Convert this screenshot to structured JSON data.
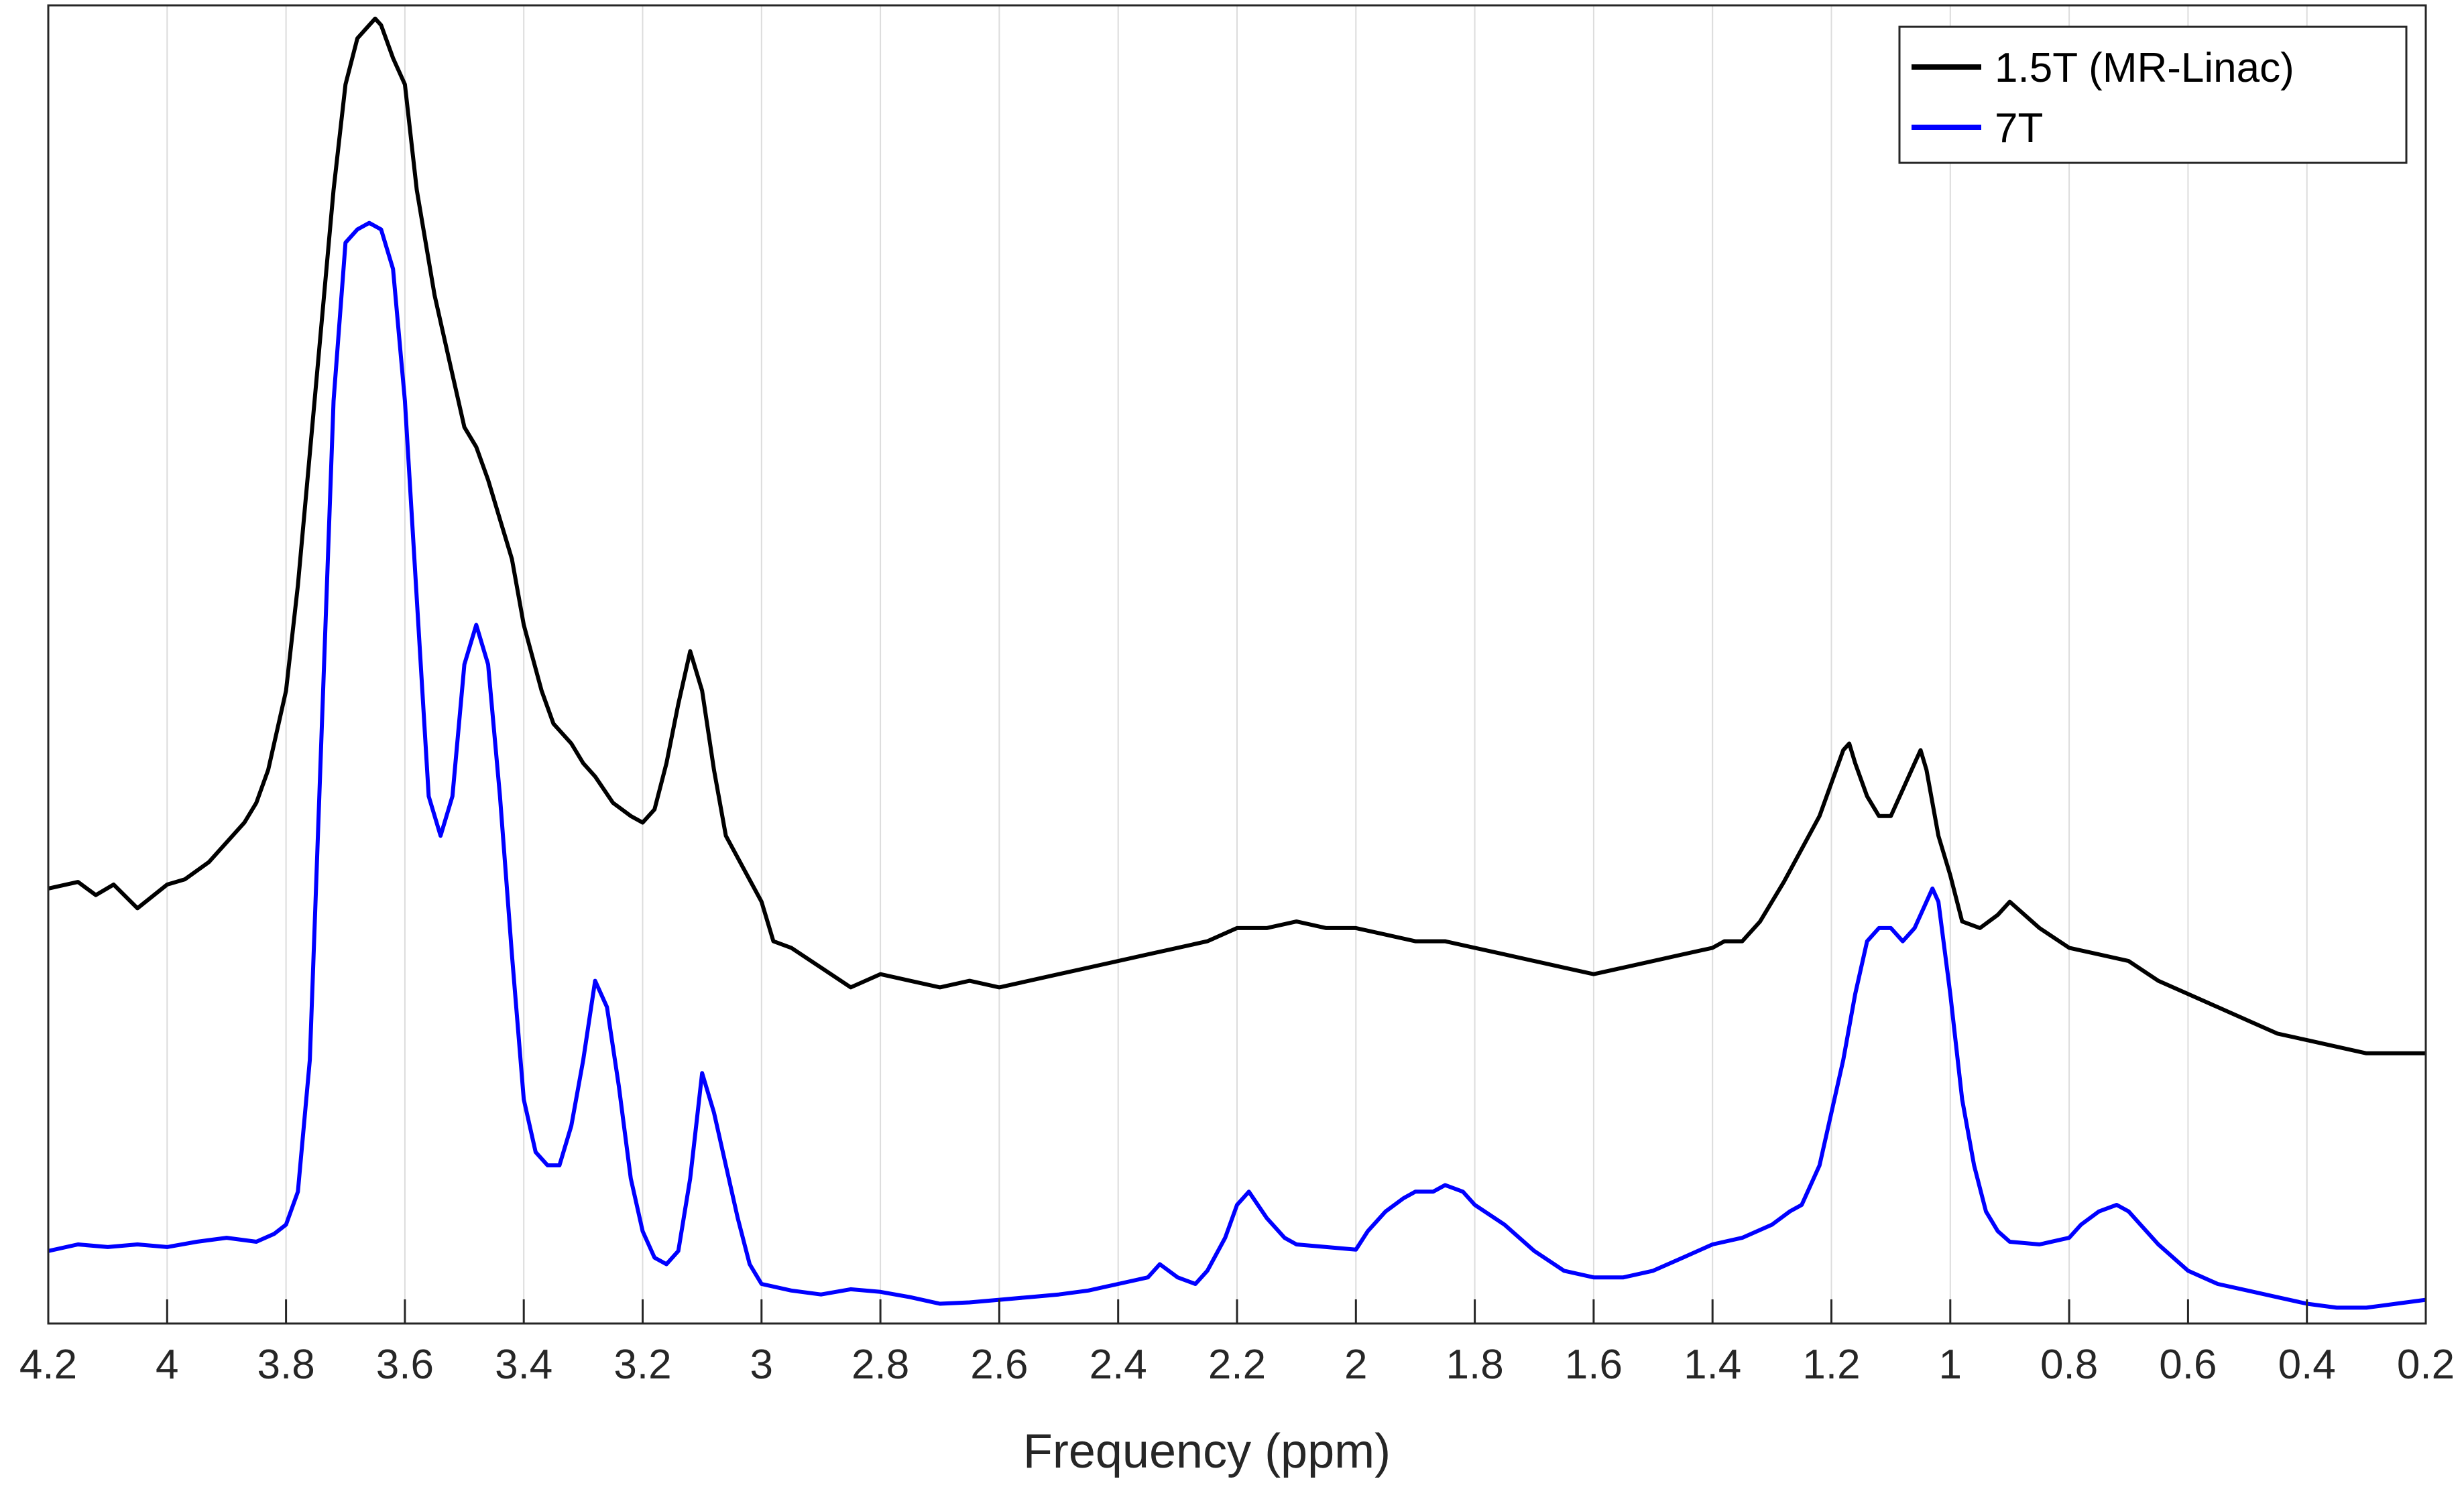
{
  "chart_data": {
    "type": "line",
    "title": "",
    "xlabel": "Frequency (ppm)",
    "ylabel": "",
    "x_reversed": true,
    "xlim": [
      0.2,
      4.2
    ],
    "ylim": [
      0,
      1
    ],
    "y_ticks_shown": false,
    "grid": "vertical",
    "legend_position": "top-right",
    "x_ticks": [
      4.2,
      4,
      3.8,
      3.6,
      3.4,
      3.2,
      3,
      2.8,
      2.6,
      2.4,
      2.2,
      2,
      1.8,
      1.6,
      1.4,
      1.2,
      1,
      0.8,
      0.6,
      0.4,
      0.2
    ],
    "x_tick_labels": [
      "4.2",
      "4",
      "3.8",
      "3.6",
      "3.4",
      "3.2",
      "3",
      "2.8",
      "2.6",
      "2.4",
      "2.2",
      "2",
      "1.8",
      "1.6",
      "1.4",
      "1.2",
      "1",
      "0.8",
      "0.6",
      "0.4",
      "0.2"
    ],
    "series": [
      {
        "name": "1.5T (MR-Linac)",
        "color": "#000000",
        "x": [
          4.2,
          4.15,
          4.12,
          4.09,
          4.05,
          4.0,
          3.97,
          3.93,
          3.9,
          3.87,
          3.85,
          3.83,
          3.8,
          3.78,
          3.76,
          3.74,
          3.72,
          3.7,
          3.68,
          3.66,
          3.65,
          3.64,
          3.62,
          3.6,
          3.58,
          3.55,
          3.52,
          3.5,
          3.48,
          3.46,
          3.44,
          3.42,
          3.4,
          3.37,
          3.35,
          3.32,
          3.3,
          3.28,
          3.25,
          3.22,
          3.2,
          3.18,
          3.16,
          3.14,
          3.12,
          3.1,
          3.08,
          3.06,
          3.03,
          3.0,
          2.98,
          2.95,
          2.9,
          2.85,
          2.8,
          2.75,
          2.7,
          2.65,
          2.6,
          2.55,
          2.5,
          2.45,
          2.4,
          2.35,
          2.3,
          2.25,
          2.2,
          2.15,
          2.1,
          2.05,
          2.0,
          1.95,
          1.9,
          1.85,
          1.8,
          1.75,
          1.7,
          1.65,
          1.6,
          1.55,
          1.5,
          1.45,
          1.4,
          1.38,
          1.35,
          1.32,
          1.28,
          1.25,
          1.22,
          1.2,
          1.18,
          1.17,
          1.16,
          1.14,
          1.12,
          1.1,
          1.08,
          1.06,
          1.05,
          1.04,
          1.02,
          1.0,
          0.98,
          0.95,
          0.92,
          0.9,
          0.85,
          0.8,
          0.75,
          0.7,
          0.65,
          0.6,
          0.55,
          0.5,
          0.45,
          0.4,
          0.35,
          0.3,
          0.25,
          0.2
        ],
        "y": [
          0.33,
          0.335,
          0.325,
          0.333,
          0.315,
          0.333,
          0.337,
          0.35,
          0.365,
          0.38,
          0.395,
          0.42,
          0.48,
          0.56,
          0.66,
          0.76,
          0.86,
          0.94,
          0.975,
          0.985,
          0.99,
          0.985,
          0.96,
          0.94,
          0.86,
          0.78,
          0.72,
          0.68,
          0.665,
          0.64,
          0.61,
          0.58,
          0.53,
          0.48,
          0.455,
          0.44,
          0.425,
          0.415,
          0.395,
          0.385,
          0.38,
          0.39,
          0.425,
          0.47,
          0.51,
          0.48,
          0.42,
          0.37,
          0.345,
          0.32,
          0.29,
          0.285,
          0.27,
          0.255,
          0.265,
          0.26,
          0.255,
          0.26,
          0.255,
          0.26,
          0.265,
          0.27,
          0.275,
          0.28,
          0.285,
          0.29,
          0.3,
          0.3,
          0.305,
          0.3,
          0.3,
          0.295,
          0.29,
          0.29,
          0.285,
          0.28,
          0.275,
          0.27,
          0.265,
          0.27,
          0.275,
          0.28,
          0.285,
          0.29,
          0.29,
          0.305,
          0.335,
          0.36,
          0.385,
          0.41,
          0.435,
          0.44,
          0.425,
          0.4,
          0.385,
          0.385,
          0.405,
          0.425,
          0.435,
          0.42,
          0.37,
          0.34,
          0.305,
          0.3,
          0.31,
          0.32,
          0.3,
          0.285,
          0.28,
          0.275,
          0.26,
          0.25,
          0.24,
          0.23,
          0.22,
          0.215,
          0.21,
          0.205,
          0.205,
          0.205
        ]
      },
      {
        "name": "7T",
        "color": "#0000ff",
        "x": [
          4.2,
          4.15,
          4.1,
          4.05,
          4.0,
          3.95,
          3.9,
          3.85,
          3.82,
          3.8,
          3.78,
          3.76,
          3.74,
          3.72,
          3.7,
          3.68,
          3.66,
          3.64,
          3.62,
          3.6,
          3.58,
          3.56,
          3.54,
          3.52,
          3.5,
          3.48,
          3.46,
          3.44,
          3.42,
          3.4,
          3.38,
          3.36,
          3.34,
          3.32,
          3.3,
          3.28,
          3.26,
          3.24,
          3.22,
          3.2,
          3.18,
          3.16,
          3.14,
          3.12,
          3.1,
          3.08,
          3.06,
          3.04,
          3.02,
          3.0,
          2.95,
          2.9,
          2.85,
          2.8,
          2.75,
          2.7,
          2.65,
          2.6,
          2.55,
          2.5,
          2.45,
          2.4,
          2.35,
          2.33,
          2.3,
          2.27,
          2.25,
          2.22,
          2.2,
          2.18,
          2.15,
          2.12,
          2.1,
          2.05,
          2.0,
          1.98,
          1.95,
          1.92,
          1.9,
          1.87,
          1.85,
          1.82,
          1.8,
          1.75,
          1.7,
          1.65,
          1.6,
          1.55,
          1.5,
          1.45,
          1.4,
          1.35,
          1.3,
          1.27,
          1.25,
          1.22,
          1.2,
          1.18,
          1.16,
          1.14,
          1.12,
          1.1,
          1.08,
          1.06,
          1.04,
          1.03,
          1.02,
          1.0,
          0.98,
          0.96,
          0.94,
          0.92,
          0.9,
          0.85,
          0.8,
          0.78,
          0.75,
          0.72,
          0.7,
          0.68,
          0.65,
          0.6,
          0.55,
          0.5,
          0.45,
          0.4,
          0.35,
          0.3,
          0.25,
          0.2
        ],
        "y": [
          0.055,
          0.06,
          0.058,
          0.06,
          0.058,
          0.062,
          0.065,
          0.062,
          0.068,
          0.075,
          0.1,
          0.2,
          0.45,
          0.7,
          0.82,
          0.83,
          0.835,
          0.83,
          0.8,
          0.7,
          0.55,
          0.4,
          0.37,
          0.4,
          0.5,
          0.53,
          0.5,
          0.4,
          0.28,
          0.17,
          0.13,
          0.12,
          0.12,
          0.15,
          0.2,
          0.26,
          0.24,
          0.18,
          0.11,
          0.07,
          0.05,
          0.045,
          0.055,
          0.11,
          0.19,
          0.16,
          0.12,
          0.08,
          0.045,
          0.03,
          0.025,
          0.022,
          0.026,
          0.024,
          0.02,
          0.015,
          0.016,
          0.018,
          0.02,
          0.022,
          0.025,
          0.03,
          0.035,
          0.045,
          0.035,
          0.03,
          0.04,
          0.065,
          0.09,
          0.1,
          0.08,
          0.065,
          0.06,
          0.058,
          0.056,
          0.07,
          0.085,
          0.095,
          0.1,
          0.1,
          0.105,
          0.1,
          0.09,
          0.075,
          0.055,
          0.04,
          0.035,
          0.035,
          0.04,
          0.05,
          0.06,
          0.065,
          0.075,
          0.085,
          0.09,
          0.12,
          0.16,
          0.2,
          0.25,
          0.29,
          0.3,
          0.3,
          0.29,
          0.3,
          0.32,
          0.33,
          0.32,
          0.25,
          0.17,
          0.12,
          0.085,
          0.07,
          0.062,
          0.06,
          0.065,
          0.075,
          0.085,
          0.09,
          0.085,
          0.075,
          0.06,
          0.04,
          0.03,
          0.025,
          0.02,
          0.015,
          0.012,
          0.012,
          0.015,
          0.018
        ]
      }
    ]
  }
}
